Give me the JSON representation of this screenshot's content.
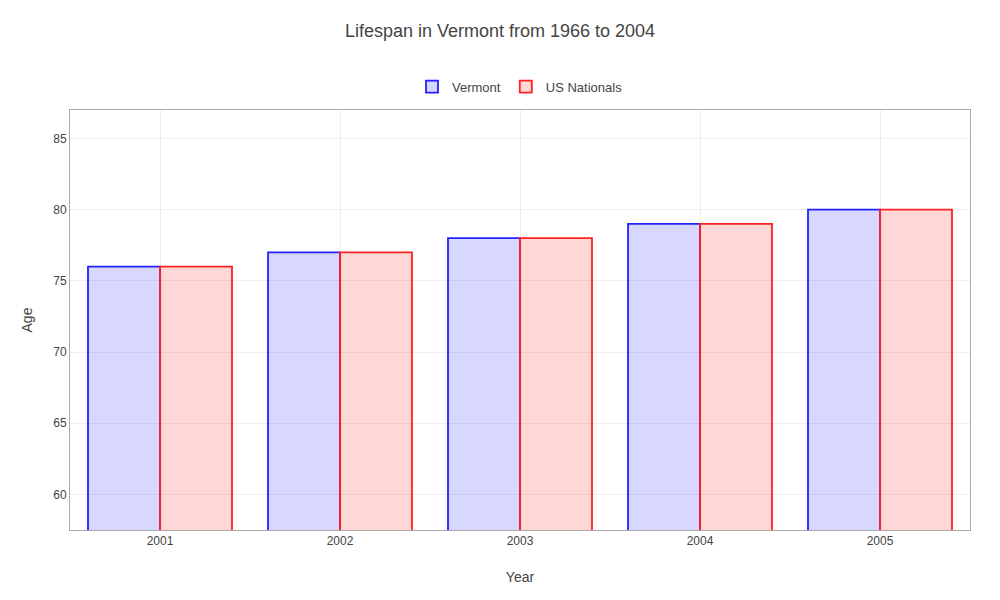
{
  "chart_data": {
    "type": "bar",
    "title": "Lifespan in Vermont from 1966 to 2004",
    "xlabel": "Year",
    "ylabel": "Age",
    "categories": [
      "2001",
      "2002",
      "2003",
      "2004",
      "2005"
    ],
    "series": [
      {
        "name": "Vermont",
        "color": "#2222ff",
        "values": [
          76,
          77,
          78,
          79,
          80
        ]
      },
      {
        "name": "US Nationals",
        "color": "#ff2222",
        "values": [
          76,
          77,
          78,
          79,
          80
        ]
      }
    ],
    "ylim": [
      57.5,
      87
    ],
    "yticks": [
      60,
      65,
      70,
      75,
      80,
      85
    ],
    "grid": true,
    "legend": "upper center"
  }
}
